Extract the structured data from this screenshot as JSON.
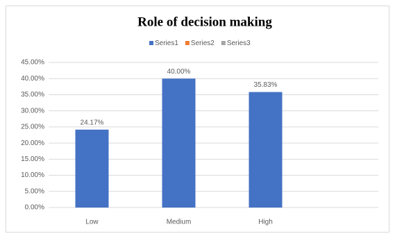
{
  "chart_data": {
    "type": "bar",
    "title": "Role of decision making",
    "categories": [
      "Low",
      "Medium",
      "High"
    ],
    "series": [
      {
        "name": "Series1",
        "color": "#4472c4",
        "values": [
          24.17,
          40.0,
          35.83
        ],
        "value_labels": [
          "24.17%",
          "40.00%",
          "35.83%"
        ]
      },
      {
        "name": "Series2",
        "color": "#ed7d31",
        "values": [
          null,
          null,
          null
        ]
      },
      {
        "name": "Series3",
        "color": "#a5a5a5",
        "values": [
          null,
          null,
          null
        ]
      }
    ],
    "ylim": [
      0,
      45
    ],
    "yticks": [
      {
        "value": 0,
        "label": "0.00%"
      },
      {
        "value": 5,
        "label": "5.00%"
      },
      {
        "value": 10,
        "label": "10.00%"
      },
      {
        "value": 15,
        "label": "15.00%"
      },
      {
        "value": 20,
        "label": "20.00%"
      },
      {
        "value": 25,
        "label": "25.00%"
      },
      {
        "value": 30,
        "label": "30.00%"
      },
      {
        "value": 35,
        "label": "35.00%"
      },
      {
        "value": 40,
        "label": "40.00%"
      },
      {
        "value": 45,
        "label": "45.00%"
      }
    ],
    "grid": true,
    "legend": "top"
  }
}
